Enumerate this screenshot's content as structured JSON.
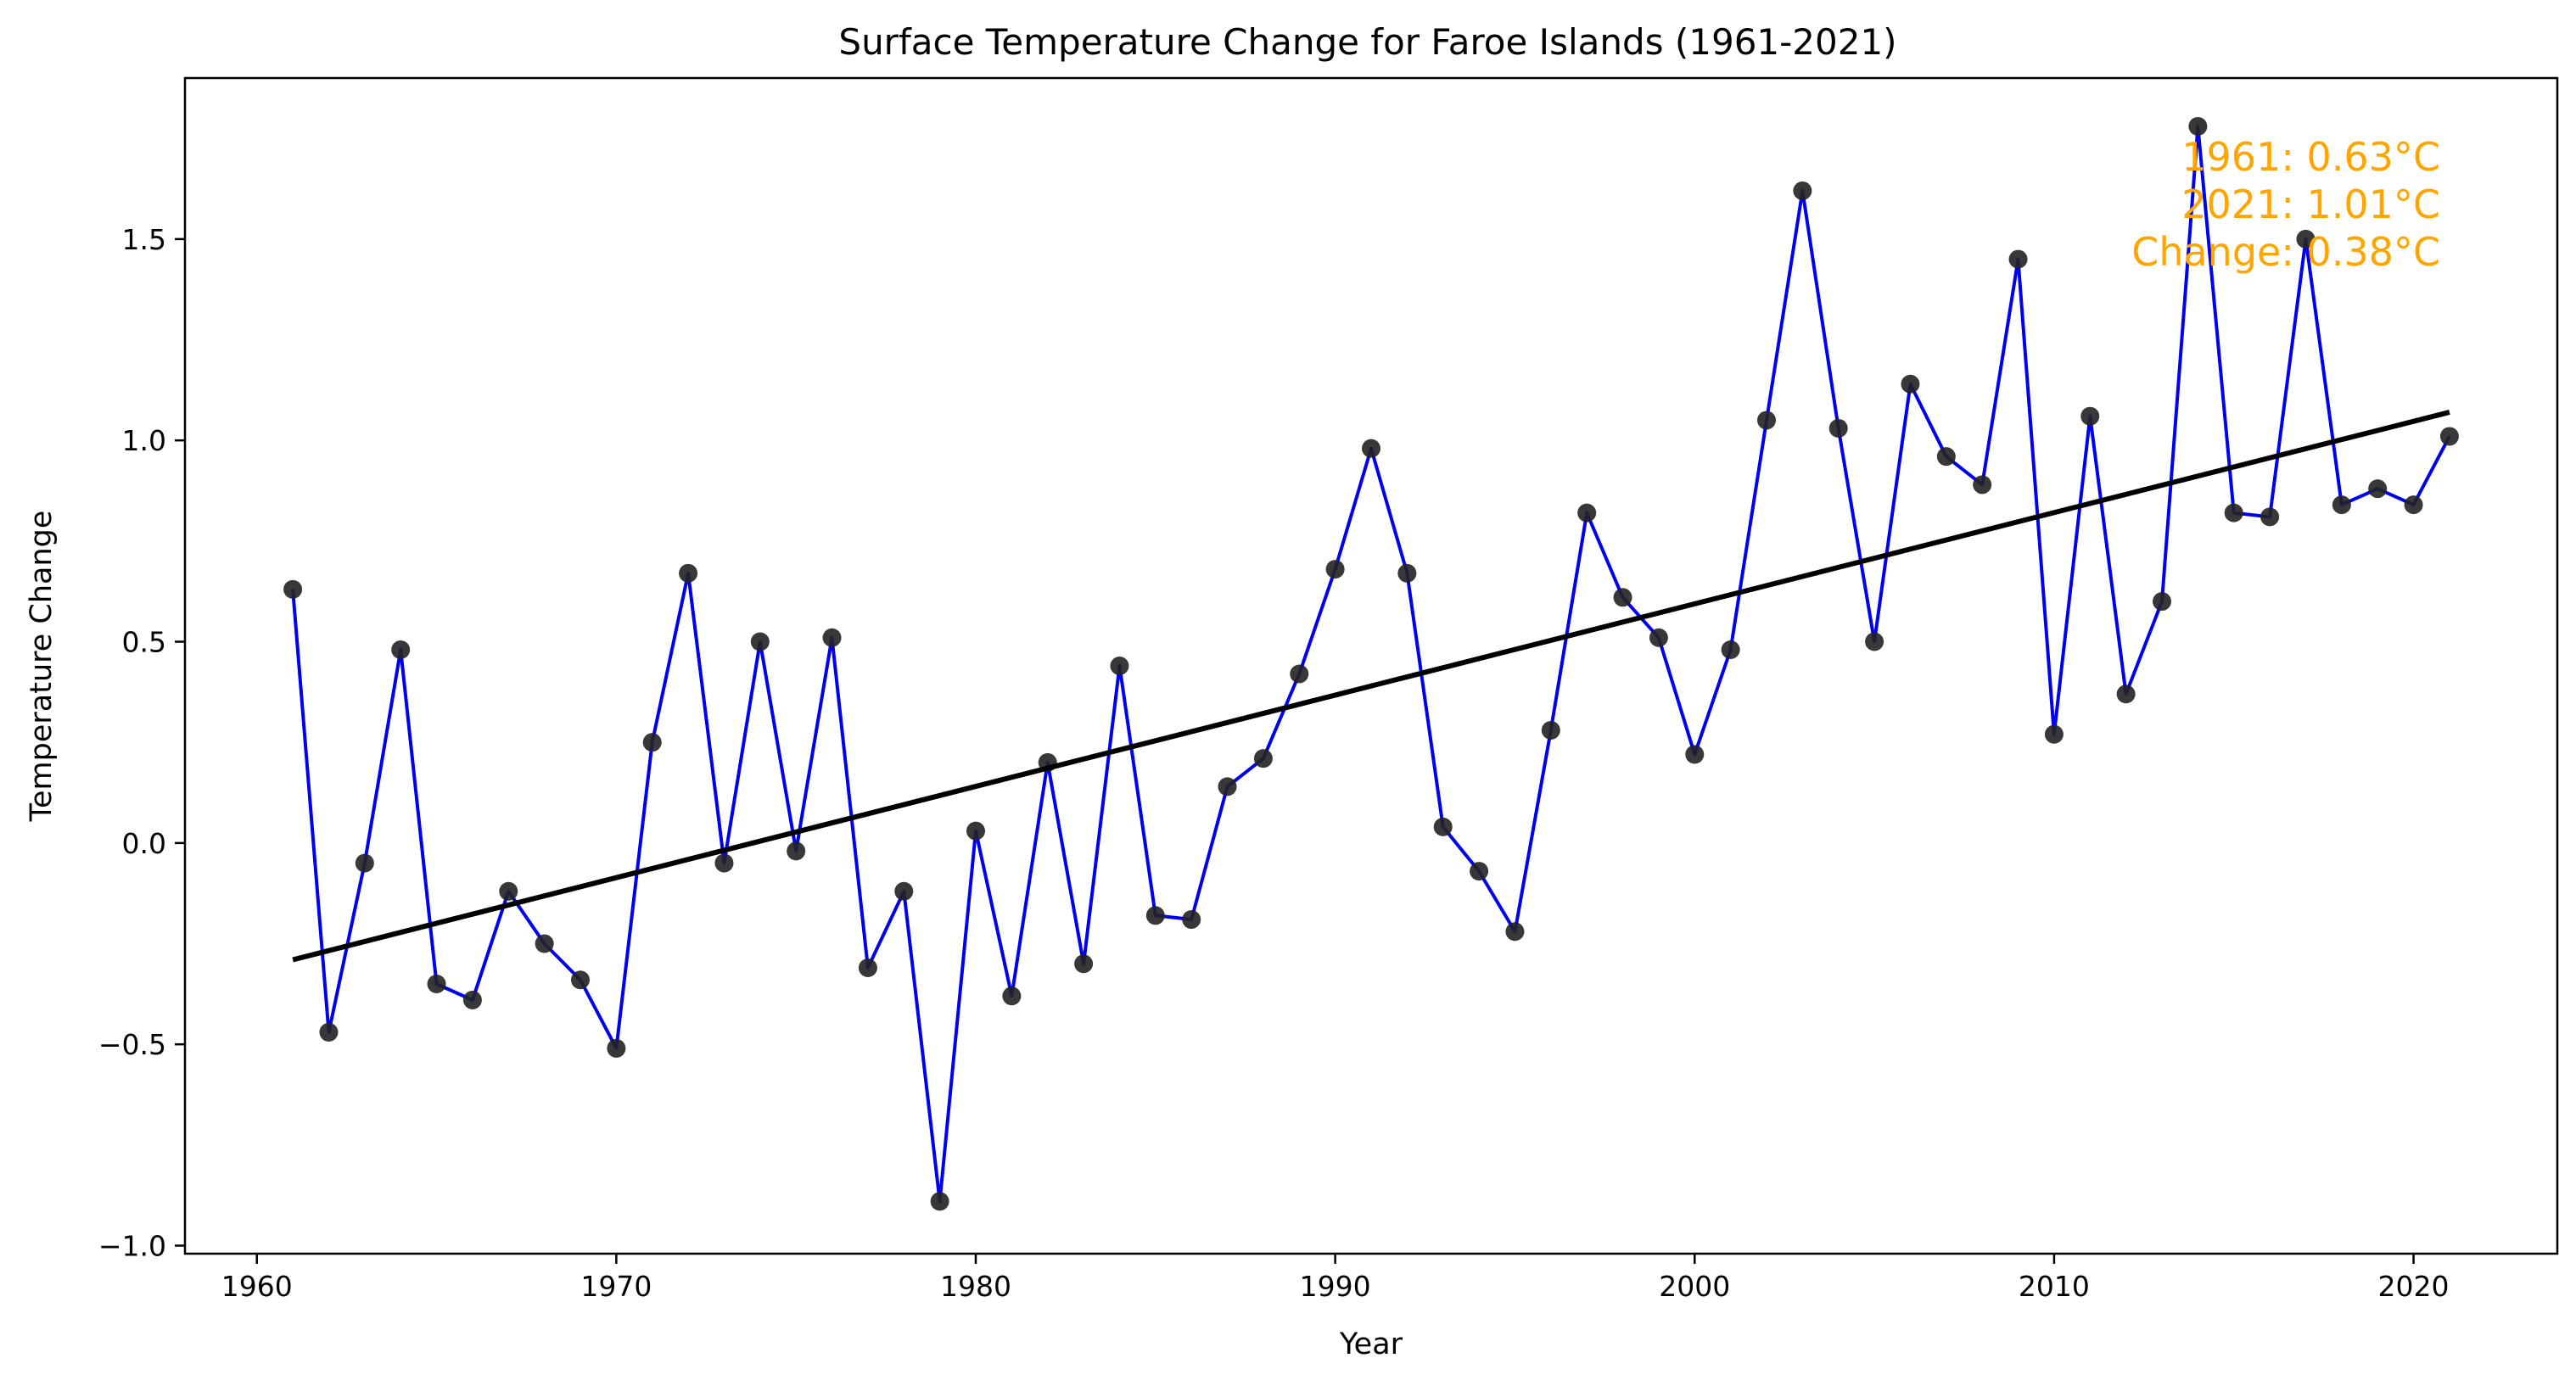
{
  "chart_data": {
    "type": "line",
    "title": "Surface Temperature Change for Faroe Islands (1961-2021)",
    "xlabel": "Year",
    "ylabel": "Temperature Change",
    "xlim": [
      1958,
      2024
    ],
    "ylim": [
      -1.02,
      1.9
    ],
    "x_ticks": [
      1960,
      1970,
      1980,
      1990,
      2000,
      2010,
      2020
    ],
    "y_ticks": [
      -1.0,
      -0.5,
      0.0,
      0.5,
      1.0,
      1.5
    ],
    "y_tick_labels": [
      "−1.0",
      "−0.5",
      "0.0",
      "0.5",
      "1.0",
      "1.5"
    ],
    "grid": false,
    "series": [
      {
        "name": "",
        "color": "#0000ee",
        "marker_color": "#222222",
        "x": [
          1961,
          1962,
          1963,
          1964,
          1965,
          1966,
          1967,
          1968,
          1969,
          1970,
          1971,
          1972,
          1973,
          1974,
          1975,
          1976,
          1977,
          1978,
          1979,
          1980,
          1981,
          1982,
          1983,
          1984,
          1985,
          1986,
          1987,
          1988,
          1989,
          1990,
          1991,
          1992,
          1993,
          1994,
          1995,
          1996,
          1997,
          1998,
          1999,
          2000,
          2001,
          2002,
          2003,
          2004,
          2005,
          2006,
          2007,
          2008,
          2009,
          2010,
          2011,
          2012,
          2013,
          2014,
          2015,
          2016,
          2017,
          2018,
          2019,
          2020,
          2021
        ],
        "values": [
          0.63,
          -0.47,
          -0.05,
          0.48,
          -0.35,
          -0.39,
          -0.12,
          -0.25,
          -0.34,
          -0.51,
          0.25,
          0.67,
          -0.05,
          0.5,
          -0.02,
          0.51,
          -0.31,
          -0.12,
          -0.89,
          0.03,
          -0.38,
          0.2,
          -0.3,
          0.44,
          -0.18,
          -0.19,
          0.14,
          0.21,
          0.42,
          0.68,
          0.98,
          0.67,
          0.04,
          -0.07,
          -0.22,
          0.28,
          0.82,
          0.61,
          0.51,
          0.22,
          0.48,
          1.05,
          1.62,
          1.03,
          0.5,
          1.14,
          0.96,
          0.89,
          1.45,
          0.27,
          1.06,
          0.37,
          0.6,
          1.78,
          0.82,
          0.81,
          1.5,
          0.84,
          0.88,
          0.84,
          1.01
        ]
      },
      {
        "name": "",
        "kind": "trend",
        "color": "#000000",
        "x": [
          1961,
          2021
        ],
        "values": [
          -0.29,
          1.07
        ]
      }
    ],
    "annotation": {
      "color": "#ffa500",
      "lines": [
        "1961: 0.63°C",
        "2021: 1.01°C",
        "Change: 0.38°C"
      ]
    }
  }
}
